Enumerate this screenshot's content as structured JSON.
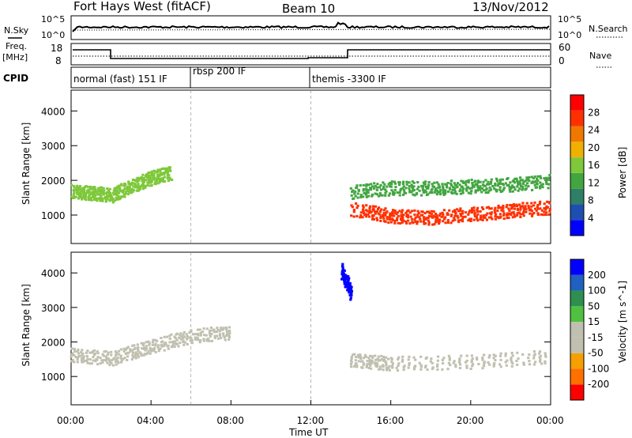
{
  "header": {
    "radar": "Fort Hays West (fitACF)",
    "beam": "Beam 10",
    "date": "13/Nov/2012"
  },
  "strip_labels": {
    "nsky": "N.Sky",
    "nsearch": "N.Search",
    "freq_line1": "Freq.",
    "freq_line2": "[MHz]",
    "nave": "Nave",
    "cpid": "CPID"
  },
  "noise_axis": {
    "left_ticks": [
      "10^5",
      "10^0"
    ],
    "right_ticks": [
      "10^5",
      "10^0"
    ]
  },
  "freq_axis": {
    "left_ticks": [
      "18",
      "8"
    ],
    "right_ticks": [
      "60",
      "0"
    ]
  },
  "cpid_segments": [
    {
      "label": "normal (fast) 151 IF",
      "start_hour": 0
    },
    {
      "label": "rbsp 200 IF",
      "start_hour": 6
    },
    {
      "label": "themis -3300 IF",
      "start_hour": 12
    }
  ],
  "colors": {
    "power_bar": [
      "#0000ff",
      "#1e4fb0",
      "#2e7f66",
      "#42a540",
      "#7ec83a",
      "#f0b000",
      "#f07800",
      "#ff3000",
      "#ff0000"
    ],
    "velocity_bar": [
      "#ff0000",
      "#ff7000",
      "#f5a000",
      "#c0c0b0",
      "#c0c0b0",
      "#50c040",
      "#2e8f50",
      "#2060c0",
      "#0000ff"
    ],
    "gray_scatter": "#bfbfb8"
  },
  "chart_data": [
    {
      "type": "heatmap",
      "name_shown": "",
      "ylabel": "Slant Range [km]",
      "ylim": [
        180,
        4600
      ],
      "xlim_hours": [
        0,
        24
      ],
      "yticks": [
        "1000",
        "2000",
        "3000",
        "4000"
      ],
      "colorbar": {
        "label": "Power [dB]",
        "ticks": [
          "28",
          "24",
          "20",
          "16",
          "12",
          "8",
          "4"
        ],
        "range": [
          0,
          30
        ]
      },
      "features": [
        {
          "desc": "band",
          "x": [
            0,
            1,
            2,
            3,
            4,
            5
          ],
          "y": [
            1700,
            1650,
            1600,
            1850,
            2100,
            2250
          ],
          "value_db": 14
        },
        {
          "desc": "band",
          "x": [
            14,
            16,
            18,
            20,
            22,
            24
          ],
          "y": [
            1200,
            1000,
            950,
            1050,
            1150,
            1250
          ],
          "value_db": 26
        },
        {
          "desc": "band",
          "x": [
            14,
            16,
            18,
            20,
            22,
            24
          ],
          "y": [
            1700,
            1800,
            1800,
            1850,
            1900,
            2000
          ],
          "value_db": 12
        }
      ]
    },
    {
      "type": "heatmap",
      "ylabel": "Slant Range [km]",
      "xlabel": "Time UT",
      "ylim": [
        180,
        4600
      ],
      "xlim_hours": [
        0,
        24
      ],
      "yticks": [
        "1000",
        "2000",
        "3000",
        "4000"
      ],
      "xticks": [
        "00:00",
        "04:00",
        "08:00",
        "12:00",
        "16:00",
        "20:00",
        "00:00"
      ],
      "colorbar": {
        "label": "Velocity [m s^-1]",
        "ticks": [
          "200",
          "100",
          "50",
          "15",
          "-15",
          "-50",
          "-100",
          "-200"
        ],
        "range": [
          -250,
          250
        ]
      },
      "features": [
        {
          "desc": "band",
          "x": [
            0,
            2,
            4,
            6,
            8
          ],
          "y": [
            1650,
            1550,
            1900,
            2200,
            2300
          ],
          "value_ms": 0
        },
        {
          "desc": "band",
          "x": [
            13.5,
            14
          ],
          "y": [
            4100,
            3400
          ],
          "value_ms": 220
        },
        {
          "desc": "band",
          "x": [
            14,
            16,
            20,
            24
          ],
          "y": [
            1500,
            1400,
            1450,
            1600
          ],
          "value_ms": 0
        }
      ]
    }
  ]
}
